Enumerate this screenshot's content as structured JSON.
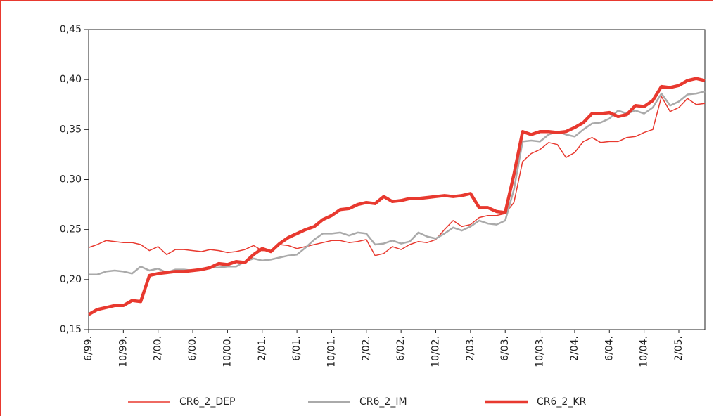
{
  "chart_data": {
    "type": "line",
    "categories": [
      "6/99.",
      null,
      null,
      null,
      "10/99.",
      null,
      null,
      null,
      "2/00.",
      null,
      null,
      null,
      "6/00.",
      null,
      null,
      null,
      "10/00.",
      null,
      null,
      null,
      "2/01.",
      null,
      null,
      null,
      "6/01.",
      null,
      null,
      null,
      "10/01.",
      null,
      null,
      null,
      "2/02.",
      null,
      null,
      null,
      "6/02.",
      null,
      null,
      null,
      "10/02.",
      null,
      null,
      null,
      "2/03.",
      null,
      null,
      null,
      "6/03.",
      null,
      null,
      null,
      "10/03.",
      null,
      null,
      null,
      "2/04.",
      null,
      null,
      null,
      "6/04.",
      null,
      null,
      null,
      "10/04.",
      null,
      null,
      null,
      "2/05.",
      null,
      null,
      null
    ],
    "series": [
      {
        "name": "CR6_2_DEP",
        "color": "#e8392f",
        "line_width": 1.5,
        "values": [
          0.232,
          0.235,
          0.239,
          0.238,
          0.237,
          0.237,
          0.235,
          0.229,
          0.233,
          0.225,
          0.23,
          0.23,
          0.229,
          0.228,
          0.23,
          0.229,
          0.227,
          0.228,
          0.23,
          0.234,
          0.229,
          0.229,
          0.235,
          0.234,
          0.231,
          0.233,
          0.235,
          0.237,
          0.239,
          0.239,
          0.237,
          0.238,
          0.24,
          0.224,
          0.226,
          0.233,
          0.23,
          0.235,
          0.238,
          0.237,
          0.24,
          0.25,
          0.259,
          0.253,
          0.255,
          0.262,
          0.264,
          0.264,
          0.266,
          0.277,
          0.318,
          0.326,
          0.33,
          0.337,
          0.335,
          0.322,
          0.327,
          0.338,
          0.342,
          0.337,
          0.338,
          0.338,
          0.342,
          0.343,
          0.347,
          0.35,
          0.383,
          0.368,
          0.372,
          0.381,
          0.375,
          0.376
        ]
      },
      {
        "name": "CR6_2_IM",
        "color": "#aaaaaa",
        "line_width": 2.5,
        "values": [
          0.205,
          0.205,
          0.208,
          0.209,
          0.208,
          0.206,
          0.213,
          0.209,
          0.211,
          0.207,
          0.21,
          0.21,
          0.209,
          0.211,
          0.212,
          0.212,
          0.213,
          0.213,
          0.218,
          0.221,
          0.219,
          0.22,
          0.222,
          0.224,
          0.225,
          0.232,
          0.24,
          0.246,
          0.246,
          0.247,
          0.244,
          0.247,
          0.246,
          0.235,
          0.236,
          0.239,
          0.236,
          0.238,
          0.247,
          0.243,
          0.241,
          0.246,
          0.252,
          0.249,
          0.253,
          0.259,
          0.256,
          0.255,
          0.259,
          0.29,
          0.338,
          0.339,
          0.338,
          0.345,
          0.348,
          0.345,
          0.343,
          0.35,
          0.356,
          0.357,
          0.361,
          0.369,
          0.366,
          0.369,
          0.366,
          0.372,
          0.386,
          0.374,
          0.378,
          0.385,
          0.386,
          0.388
        ]
      },
      {
        "name": "CR6_2_KR",
        "color": "#e8392f",
        "line_width": 4.5,
        "values": [
          0.165,
          0.17,
          0.172,
          0.174,
          0.174,
          0.179,
          0.178,
          0.204,
          0.206,
          0.207,
          0.208,
          0.208,
          0.209,
          0.21,
          0.212,
          0.216,
          0.215,
          0.218,
          0.217,
          0.225,
          0.231,
          0.228,
          0.236,
          0.242,
          0.246,
          0.25,
          0.253,
          0.26,
          0.264,
          0.27,
          0.271,
          0.275,
          0.277,
          0.276,
          0.283,
          0.278,
          0.279,
          0.281,
          0.281,
          0.282,
          0.283,
          0.284,
          0.283,
          0.284,
          0.286,
          0.272,
          0.272,
          0.268,
          0.267,
          0.305,
          0.348,
          0.345,
          0.348,
          0.348,
          0.347,
          0.348,
          0.352,
          0.357,
          0.366,
          0.366,
          0.367,
          0.363,
          0.365,
          0.374,
          0.373,
          0.379,
          0.393,
          0.392,
          0.394,
          0.399,
          0.401,
          0.399
        ]
      }
    ],
    "ylim": [
      0.15,
      0.45
    ],
    "yticks": [
      {
        "value": 0.15,
        "label": "0,15"
      },
      {
        "value": 0.2,
        "label": "0,20"
      },
      {
        "value": 0.25,
        "label": "0,25"
      },
      {
        "value": 0.3,
        "label": "0,30"
      },
      {
        "value": 0.35,
        "label": "0,35"
      },
      {
        "value": 0.4,
        "label": "0,40"
      },
      {
        "value": 0.45,
        "label": "0,45"
      }
    ],
    "grid": false,
    "legend": "bottom"
  }
}
